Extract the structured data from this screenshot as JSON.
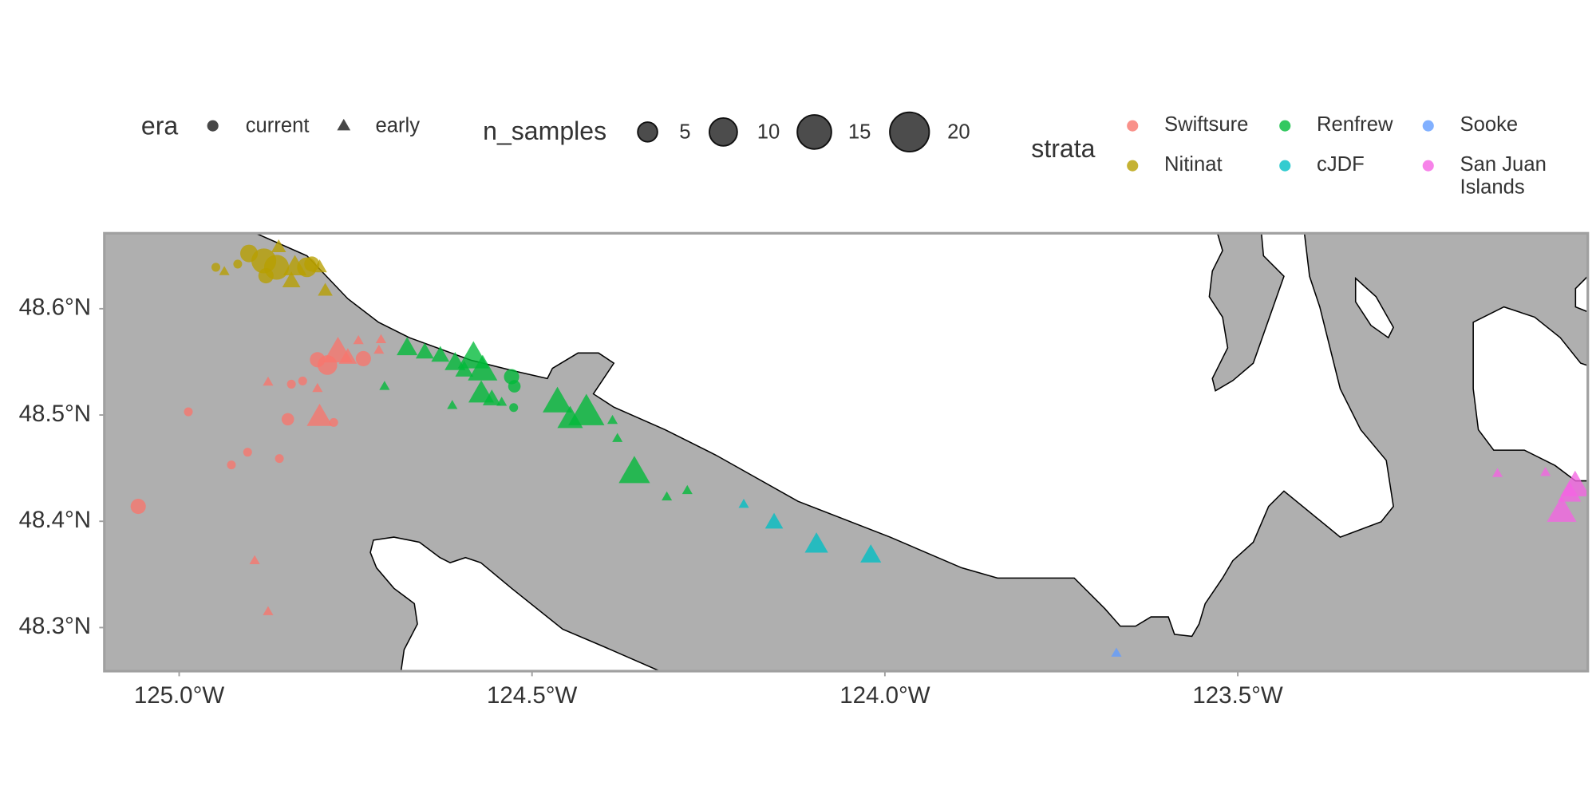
{
  "chart_data": {
    "type": "scatter",
    "xlim": [
      -125.106,
      -123.004
    ],
    "ylim": [
      48.259,
      48.671
    ],
    "xticks": [
      {
        "value": -125.0,
        "label": "125.0°W"
      },
      {
        "value": -124.5,
        "label": "124.5°W"
      },
      {
        "value": -124.0,
        "label": "124.0°W"
      },
      {
        "value": -123.5,
        "label": "123.5°W"
      }
    ],
    "yticks": [
      {
        "value": 48.3,
        "label": "48.3°N"
      },
      {
        "value": 48.4,
        "label": "48.4°N"
      },
      {
        "value": 48.5,
        "label": "48.5°N"
      },
      {
        "value": 48.6,
        "label": "48.6°N"
      }
    ],
    "era_legend": {
      "title": "era",
      "items": [
        "current",
        "early"
      ]
    },
    "size_legend": {
      "title": "n_samples",
      "values": [
        5,
        10,
        15,
        20
      ]
    },
    "color_legend_title": "strata",
    "series": [
      {
        "name": "Swiftsure",
        "color": "#F8766D",
        "x": [
          -124.804,
          -124.79,
          -124.739,
          -124.775,
          -124.761,
          -124.746,
          -124.714,
          -124.717,
          -124.825,
          -124.841,
          -124.874,
          -124.804,
          -124.987,
          -124.846,
          -124.801,
          -124.781,
          -124.903,
          -124.926,
          -124.858,
          -125.058,
          -124.893,
          -124.874
        ],
        "y": [
          48.552,
          48.547,
          48.553,
          48.559,
          48.554,
          48.57,
          48.571,
          48.561,
          48.532,
          48.529,
          48.531,
          48.525,
          48.503,
          48.496,
          48.498,
          48.493,
          48.465,
          48.453,
          48.459,
          48.414,
          48.363,
          48.315
        ],
        "size": [
          3,
          5,
          3,
          8,
          3,
          1,
          1,
          1,
          1,
          1,
          1,
          1,
          1,
          2,
          6,
          1,
          1,
          1,
          1,
          3,
          1,
          1
        ],
        "era": [
          "current",
          "current",
          "current",
          "early",
          "early",
          "early",
          "early",
          "early",
          "current",
          "current",
          "early",
          "early",
          "current",
          "current",
          "early",
          "current",
          "current",
          "current",
          "current",
          "current",
          "early",
          "early"
        ]
      },
      {
        "name": "Nitinat",
        "color": "#B79F00",
        "x": [
          -124.901,
          -124.88,
          -124.862,
          -124.877,
          -124.819,
          -124.812,
          -124.948,
          -124.917,
          -124.936,
          -124.859,
          -124.836,
          -124.841,
          -124.793,
          -124.801
        ],
        "y": [
          48.652,
          48.645,
          48.639,
          48.631,
          48.639,
          48.642,
          48.639,
          48.642,
          48.635,
          48.658,
          48.639,
          48.626,
          48.617,
          48.639
        ],
        "size": [
          4,
          8,
          8,
          3,
          5,
          3,
          1,
          1,
          1,
          2,
          5,
          3,
          2,
          2
        ],
        "era": [
          "current",
          "current",
          "current",
          "current",
          "current",
          "current",
          "current",
          "current",
          "early",
          "early",
          "early",
          "early",
          "early",
          "early"
        ]
      },
      {
        "name": "Renfrew",
        "color": "#00BA38",
        "x": [
          -124.677,
          -124.652,
          -124.63,
          -124.609,
          -124.583,
          -124.57,
          -124.596,
          -124.572,
          -124.557,
          -124.709,
          -124.613,
          -124.543,
          -124.529,
          -124.525,
          -124.526,
          -124.464,
          -124.446,
          -124.423,
          -124.386,
          -124.379,
          -124.355,
          -124.309,
          -124.28
        ],
        "y": [
          48.563,
          48.559,
          48.556,
          48.549,
          48.554,
          48.542,
          48.542,
          48.52,
          48.515,
          48.527,
          48.509,
          48.512,
          48.536,
          48.527,
          48.507,
          48.512,
          48.496,
          48.502,
          48.495,
          48.478,
          48.446,
          48.423,
          48.429
        ],
        "size": [
          4,
          3,
          3,
          4,
          9,
          8,
          3,
          6,
          3,
          1,
          1,
          1,
          3,
          2,
          1,
          8,
          6,
          12,
          1,
          1,
          9,
          1,
          1
        ],
        "era": [
          "early",
          "early",
          "early",
          "early",
          "early",
          "early",
          "early",
          "early",
          "early",
          "early",
          "early",
          "early",
          "current",
          "current",
          "current",
          "early",
          "early",
          "early",
          "early",
          "early",
          "early",
          "early",
          "early"
        ]
      },
      {
        "name": "cJDF",
        "color": "#00BFC4",
        "x": [
          -124.2,
          -124.157,
          -124.097,
          -124.02
        ],
        "y": [
          48.416,
          48.399,
          48.378,
          48.368
        ],
        "size": [
          1,
          3,
          5,
          4
        ],
        "era": [
          "early",
          "early",
          "early",
          "early"
        ]
      },
      {
        "name": "Sooke",
        "color": "#619CFF",
        "x": [
          -123.672
        ],
        "y": [
          48.276
        ],
        "size": [
          1
        ],
        "era": [
          "early"
        ]
      },
      {
        "name": "San Juan Islands",
        "color": "#F564E3",
        "x": [
          -123.132,
          -123.064,
          -123.022,
          -123.041,
          -123.03
        ],
        "y": [
          48.445,
          48.446,
          48.433,
          48.409,
          48.426
        ],
        "size": [
          1,
          1,
          8,
          8,
          5
        ],
        "era": [
          "early",
          "early",
          "early",
          "early",
          "early"
        ]
      }
    ]
  }
}
